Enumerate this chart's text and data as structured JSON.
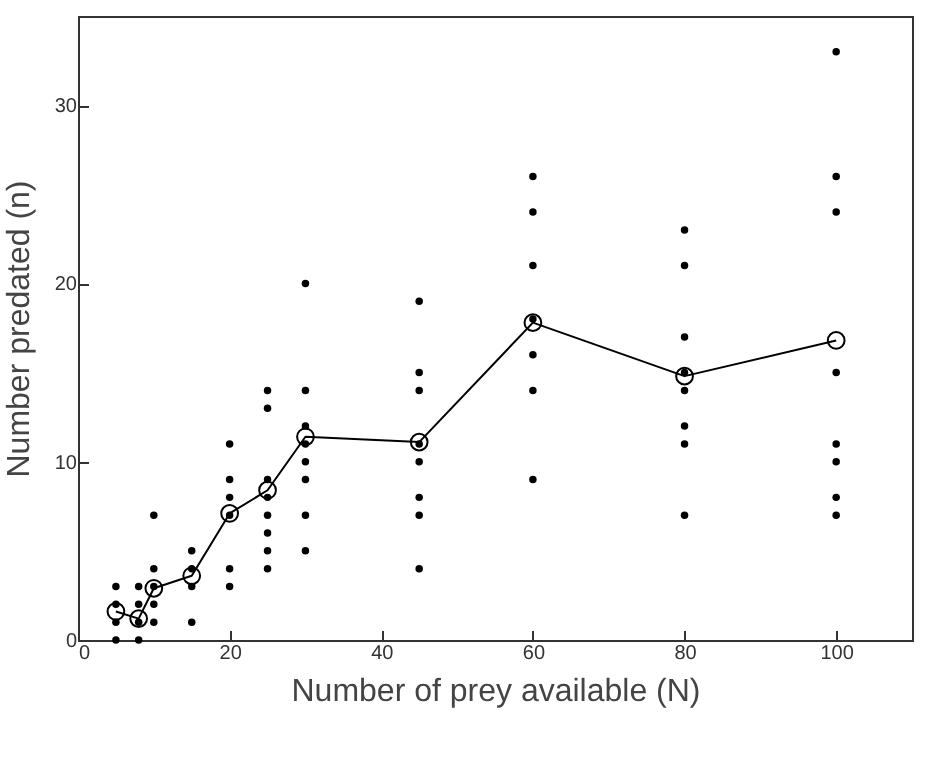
{
  "chart_data": {
    "type": "scatter",
    "xlabel": "Number of prey available (N)",
    "ylabel": "Number predated (n)",
    "xlim": [
      0,
      110
    ],
    "ylim": [
      0,
      35
    ],
    "xticks": [
      0,
      20,
      40,
      60,
      80,
      100
    ],
    "yticks": [
      0,
      10,
      20,
      30
    ],
    "grid": false,
    "series": [
      {
        "color": "#000000",
        "marker": "circle",
        "x": [
          5,
          5,
          5,
          5,
          8,
          8,
          8,
          8,
          10,
          10,
          10,
          10,
          10,
          15,
          15,
          15,
          15,
          20,
          20,
          20,
          20,
          20,
          20,
          25,
          25,
          25,
          25,
          25,
          25,
          25,
          25,
          30,
          30,
          30,
          30,
          30,
          30,
          30,
          30,
          45,
          45,
          45,
          45,
          45,
          45,
          45,
          45,
          60,
          60,
          60,
          60,
          60,
          60,
          60,
          80,
          80,
          80,
          80,
          80,
          80,
          80,
          80,
          100,
          100,
          100,
          100,
          100,
          100,
          100,
          100
        ],
        "values": [
          0,
          1,
          2,
          3,
          0,
          1,
          2,
          3,
          1,
          2,
          3,
          4,
          7,
          1,
          3,
          4,
          5,
          3,
          4,
          7,
          8,
          9,
          11,
          4,
          5,
          6,
          7,
          8,
          9,
          13,
          14,
          5,
          7,
          9,
          10,
          11,
          12,
          14,
          20,
          4,
          7,
          8,
          10,
          11,
          14,
          15,
          19,
          9,
          14,
          16,
          18,
          21,
          24,
          26,
          7,
          11,
          12,
          14,
          15,
          17,
          21,
          23,
          7,
          8,
          10,
          11,
          15,
          24,
          26,
          33
        ]
      },
      {
        "type": "line",
        "color": "#000000",
        "marker": "circle",
        "line_style": "solid",
        "x": [
          5,
          8,
          10,
          15,
          20,
          25,
          30,
          45,
          60,
          80,
          100
        ],
        "values": [
          1.6,
          1.2,
          2.9,
          3.6,
          7.1,
          8.4,
          11.4,
          11.1,
          17.8,
          14.8,
          16.8
        ]
      }
    ]
  }
}
